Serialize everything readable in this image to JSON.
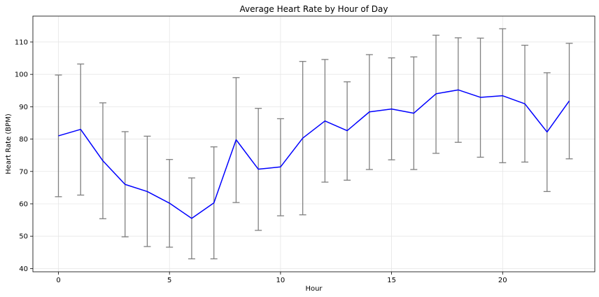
{
  "chart_data": {
    "type": "line",
    "title": "Average Heart Rate by Hour of Day",
    "xlabel": "Hour",
    "ylabel": "Heart Rate (BPM)",
    "xlim": [
      -1.15,
      24.15
    ],
    "ylim": [
      39,
      118
    ],
    "x_ticks": [
      0,
      5,
      10,
      15,
      20
    ],
    "y_ticks": [
      40,
      50,
      60,
      70,
      80,
      90,
      100,
      110
    ],
    "grid": true,
    "x": [
      0,
      1,
      2,
      3,
      4,
      5,
      6,
      7,
      8,
      9,
      10,
      11,
      12,
      13,
      14,
      15,
      16,
      17,
      18,
      19,
      20,
      21,
      22,
      23
    ],
    "series": [
      {
        "values": [
          81.0,
          83.0,
          73.3,
          66.0,
          63.8,
          60.2,
          55.5,
          60.3,
          79.8,
          70.7,
          71.4,
          80.3,
          85.6,
          82.6,
          88.4,
          89.3,
          88.0,
          94.0,
          95.2,
          92.9,
          93.4,
          90.9,
          82.2,
          91.8
        ],
        "lower": [
          62.2,
          62.7,
          55.4,
          49.8,
          46.8,
          46.6,
          43.0,
          43.0,
          60.4,
          51.8,
          56.3,
          56.6,
          66.7,
          67.3,
          70.6,
          73.6,
          70.6,
          75.6,
          79.0,
          74.4,
          72.7,
          72.9,
          63.8,
          73.9
        ],
        "upper": [
          99.8,
          103.2,
          91.2,
          82.3,
          80.9,
          73.7,
          68.0,
          77.6,
          99.0,
          89.5,
          86.3,
          104.0,
          104.6,
          97.7,
          106.1,
          105.1,
          105.4,
          112.1,
          111.3,
          111.2,
          114.1,
          109.0,
          100.5,
          109.6
        ]
      }
    ],
    "colors": {
      "line": "#0000ff",
      "errorbar": "#808080",
      "grid": "#e6e6e6",
      "axes": "#000000"
    }
  }
}
